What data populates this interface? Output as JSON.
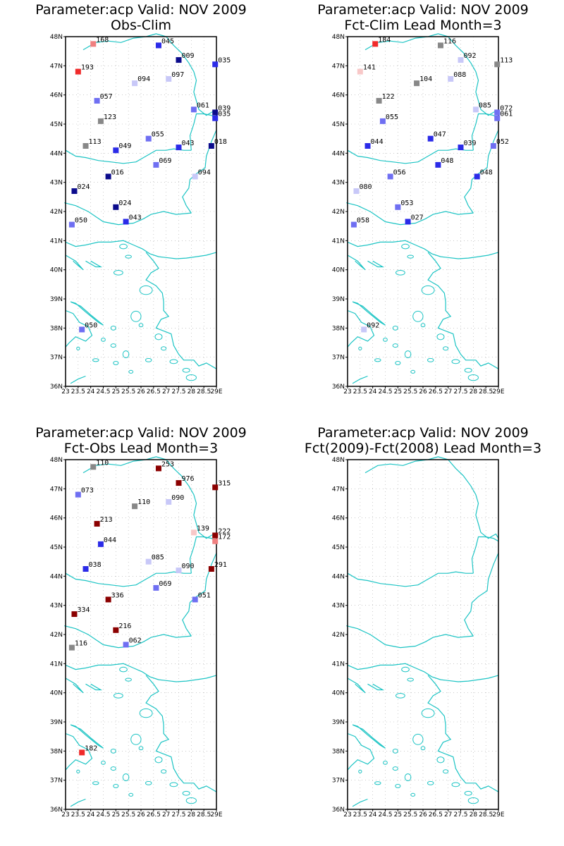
{
  "map": {
    "lon_range": [
      23,
      29
    ],
    "lat_range": [
      36,
      48
    ],
    "lat_ticks": [
      "36N",
      "37N",
      "38N",
      "39N",
      "40N",
      "41N",
      "42N",
      "43N",
      "44N",
      "45N",
      "46N",
      "47N",
      "48N"
    ],
    "lon_ticks": [
      "23",
      "23.5",
      "24",
      "24.5",
      "25",
      "25.5",
      "26",
      "26.5",
      "27",
      "27.5",
      "28",
      "28.5",
      "29E"
    ],
    "grid": "dotted",
    "coast_color": "#1cc4c4"
  },
  "color_scale": {
    "dark_blue": "#0b0b8c",
    "blue": "#2b2be8",
    "mid_blue": "#6f6ff2",
    "light_blue": "#c8c8f8",
    "gray": "#888888",
    "light_pink": "#f8c8c8",
    "red": "#f02a2a",
    "dark_red": "#8b0000",
    "salmon": "#f08080"
  },
  "panels": [
    {
      "title_line1": "Parameter:acp Valid: NOV 2009",
      "title_line2": "Obs-Clim",
      "stations": [
        {
          "lon": 24.1,
          "lat": 47.75,
          "label": "168",
          "color": "#f08080"
        },
        {
          "lon": 23.5,
          "lat": 46.8,
          "label": "193",
          "color": "#f02a2a"
        },
        {
          "lon": 26.7,
          "lat": 47.7,
          "label": "045",
          "color": "#2b2be8"
        },
        {
          "lon": 27.5,
          "lat": 47.2,
          "label": "009",
          "color": "#0b0b8c"
        },
        {
          "lon": 28.95,
          "lat": 47.05,
          "label": "035",
          "color": "#2b2be8"
        },
        {
          "lon": 25.75,
          "lat": 46.4,
          "label": "094",
          "color": "#c8c8f8"
        },
        {
          "lon": 27.1,
          "lat": 46.55,
          "label": "097",
          "color": "#c8c8f8"
        },
        {
          "lon": 24.25,
          "lat": 45.8,
          "label": "057",
          "color": "#6f6ff2"
        },
        {
          "lon": 28.1,
          "lat": 45.5,
          "label": "061",
          "color": "#6f6ff2"
        },
        {
          "lon": 28.95,
          "lat": 45.4,
          "label": "039",
          "color": "#0b0b8c"
        },
        {
          "lon": 28.95,
          "lat": 45.2,
          "label": "035",
          "color": "#2b2be8"
        },
        {
          "lon": 24.4,
          "lat": 45.1,
          "label": "123",
          "color": "#888888"
        },
        {
          "lon": 26.3,
          "lat": 44.5,
          "label": "055",
          "color": "#6f6ff2"
        },
        {
          "lon": 23.8,
          "lat": 44.25,
          "label": "113",
          "color": "#888888"
        },
        {
          "lon": 25.0,
          "lat": 44.1,
          "label": "049",
          "color": "#2b2be8"
        },
        {
          "lon": 27.5,
          "lat": 44.2,
          "label": "043",
          "color": "#2b2be8"
        },
        {
          "lon": 28.8,
          "lat": 44.25,
          "label": "018",
          "color": "#0b0b8c"
        },
        {
          "lon": 26.6,
          "lat": 43.6,
          "label": "069",
          "color": "#6f6ff2"
        },
        {
          "lon": 28.15,
          "lat": 43.2,
          "label": "094",
          "color": "#c8c8f8"
        },
        {
          "lon": 24.7,
          "lat": 43.2,
          "label": "016",
          "color": "#0b0b8c"
        },
        {
          "lon": 23.35,
          "lat": 42.7,
          "label": "024",
          "color": "#0b0b8c"
        },
        {
          "lon": 25.0,
          "lat": 42.15,
          "label": "024",
          "color": "#0b0b8c"
        },
        {
          "lon": 25.4,
          "lat": 41.65,
          "label": "043",
          "color": "#2b2be8"
        },
        {
          "lon": 23.25,
          "lat": 41.55,
          "label": "050",
          "color": "#6f6ff2"
        },
        {
          "lon": 23.65,
          "lat": 37.95,
          "label": "050",
          "color": "#6f6ff2"
        }
      ]
    },
    {
      "title_line1": "Parameter:acp Valid: NOV 2009",
      "title_line2": "Fct-Clim Lead Month=3",
      "stations": [
        {
          "lon": 24.1,
          "lat": 47.75,
          "label": "184",
          "color": "#f02a2a"
        },
        {
          "lon": 23.5,
          "lat": 46.8,
          "label": "141",
          "color": "#f8c8c8"
        },
        {
          "lon": 26.7,
          "lat": 47.7,
          "label": "116",
          "color": "#888888"
        },
        {
          "lon": 27.5,
          "lat": 47.2,
          "label": "092",
          "color": "#c8c8f8"
        },
        {
          "lon": 28.95,
          "lat": 47.05,
          "label": "113",
          "color": "#888888"
        },
        {
          "lon": 25.75,
          "lat": 46.4,
          "label": "104",
          "color": "#888888"
        },
        {
          "lon": 27.1,
          "lat": 46.55,
          "label": "088",
          "color": "#c8c8f8"
        },
        {
          "lon": 24.25,
          "lat": 45.8,
          "label": "122",
          "color": "#888888"
        },
        {
          "lon": 28.1,
          "lat": 45.5,
          "label": "085",
          "color": "#c8c8f8"
        },
        {
          "lon": 28.95,
          "lat": 45.4,
          "label": "072",
          "color": "#6f6ff2"
        },
        {
          "lon": 28.95,
          "lat": 45.2,
          "label": "061",
          "color": "#6f6ff2"
        },
        {
          "lon": 24.4,
          "lat": 45.1,
          "label": "055",
          "color": "#6f6ff2"
        },
        {
          "lon": 26.3,
          "lat": 44.5,
          "label": "047",
          "color": "#2b2be8"
        },
        {
          "lon": 23.8,
          "lat": 44.25,
          "label": "044",
          "color": "#2b2be8"
        },
        {
          "lon": 27.5,
          "lat": 44.2,
          "label": "039",
          "color": "#2b2be8"
        },
        {
          "lon": 28.8,
          "lat": 44.25,
          "label": "052",
          "color": "#6f6ff2"
        },
        {
          "lon": 26.6,
          "lat": 43.6,
          "label": "048",
          "color": "#2b2be8"
        },
        {
          "lon": 28.15,
          "lat": 43.2,
          "label": "048",
          "color": "#2b2be8"
        },
        {
          "lon": 24.7,
          "lat": 43.2,
          "label": "056",
          "color": "#6f6ff2"
        },
        {
          "lon": 23.35,
          "lat": 42.7,
          "label": "080",
          "color": "#c8c8f8"
        },
        {
          "lon": 25.0,
          "lat": 42.15,
          "label": "053",
          "color": "#6f6ff2"
        },
        {
          "lon": 25.4,
          "lat": 41.65,
          "label": "027",
          "color": "#2b2be8"
        },
        {
          "lon": 23.25,
          "lat": 41.55,
          "label": "058",
          "color": "#6f6ff2"
        },
        {
          "lon": 23.65,
          "lat": 37.95,
          "label": "092",
          "color": "#c8c8f8"
        }
      ]
    },
    {
      "title_line1": "Parameter:acp Valid: NOV 2009",
      "title_line2": "Fct-Obs Lead Month=3",
      "stations": [
        {
          "lon": 24.1,
          "lat": 47.75,
          "label": "110",
          "color": "#888888"
        },
        {
          "lon": 23.5,
          "lat": 46.8,
          "label": "073",
          "color": "#6f6ff2"
        },
        {
          "lon": 26.7,
          "lat": 47.7,
          "label": "253",
          "color": "#8b0000"
        },
        {
          "lon": 27.5,
          "lat": 47.2,
          "label": "976",
          "color": "#8b0000"
        },
        {
          "lon": 28.95,
          "lat": 47.05,
          "label": "315",
          "color": "#8b0000"
        },
        {
          "lon": 25.75,
          "lat": 46.4,
          "label": "110",
          "color": "#888888"
        },
        {
          "lon": 27.1,
          "lat": 46.55,
          "label": "090",
          "color": "#c8c8f8"
        },
        {
          "lon": 24.25,
          "lat": 45.8,
          "label": "213",
          "color": "#8b0000"
        },
        {
          "lon": 28.1,
          "lat": 45.5,
          "label": "139",
          "color": "#f8c8c8"
        },
        {
          "lon": 28.95,
          "lat": 45.4,
          "label": "222",
          "color": "#8b0000"
        },
        {
          "lon": 28.95,
          "lat": 45.2,
          "label": "172",
          "color": "#f08080"
        },
        {
          "lon": 24.4,
          "lat": 45.1,
          "label": "044",
          "color": "#2b2be8"
        },
        {
          "lon": 26.3,
          "lat": 44.5,
          "label": "085",
          "color": "#c8c8f8"
        },
        {
          "lon": 23.8,
          "lat": 44.25,
          "label": "038",
          "color": "#2b2be8"
        },
        {
          "lon": 27.5,
          "lat": 44.2,
          "label": "090",
          "color": "#c8c8f8"
        },
        {
          "lon": 28.8,
          "lat": 44.25,
          "label": "291",
          "color": "#8b0000"
        },
        {
          "lon": 26.6,
          "lat": 43.6,
          "label": "069",
          "color": "#6f6ff2"
        },
        {
          "lon": 28.15,
          "lat": 43.2,
          "label": "051",
          "color": "#6f6ff2"
        },
        {
          "lon": 24.7,
          "lat": 43.2,
          "label": "336",
          "color": "#8b0000"
        },
        {
          "lon": 23.35,
          "lat": 42.7,
          "label": "334",
          "color": "#8b0000"
        },
        {
          "lon": 25.0,
          "lat": 42.15,
          "label": "216",
          "color": "#8b0000"
        },
        {
          "lon": 25.4,
          "lat": 41.65,
          "label": "062",
          "color": "#6f6ff2"
        },
        {
          "lon": 23.25,
          "lat": 41.55,
          "label": "116",
          "color": "#888888"
        },
        {
          "lon": 23.65,
          "lat": 37.95,
          "label": "182",
          "color": "#f02a2a"
        }
      ]
    },
    {
      "title_line1": "Parameter:acp Valid: NOV 2009",
      "title_line2": "Fct(2009)-Fct(2008) Lead Month=3",
      "stations": []
    }
  ]
}
